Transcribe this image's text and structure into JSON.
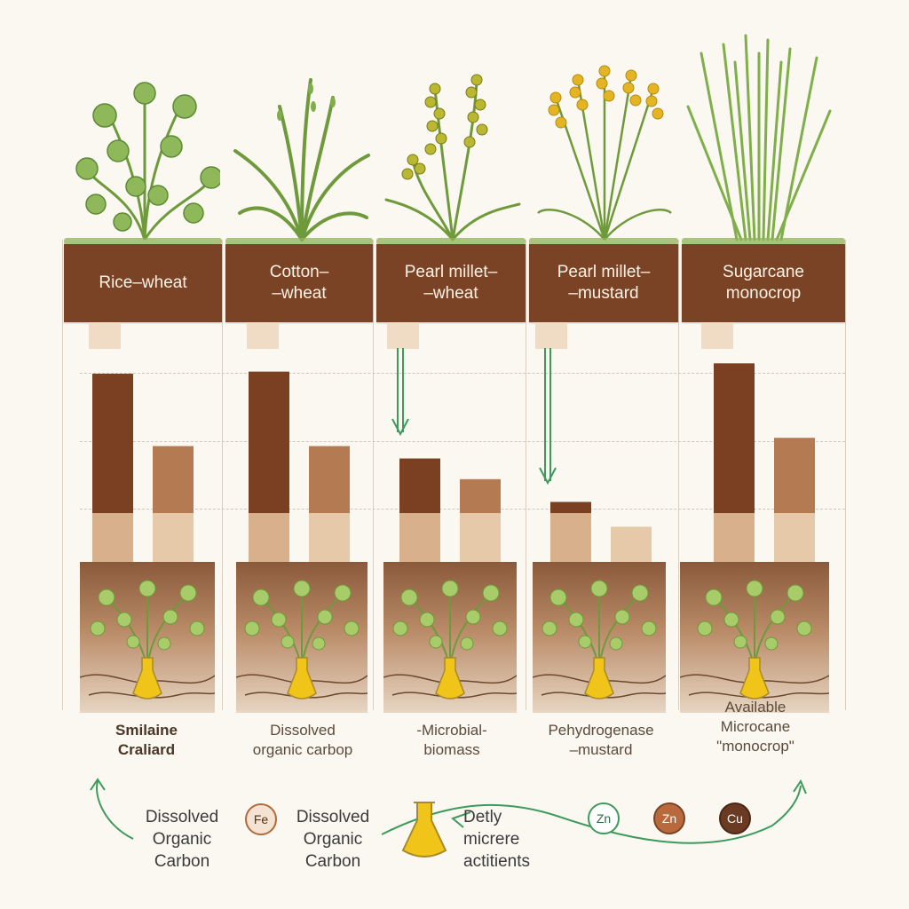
{
  "columns": [
    {
      "id": "c1",
      "header": "Rice–wheat",
      "soil_label": "Smilaine\nCraliard",
      "soil_label_style": "bold"
    },
    {
      "id": "c2",
      "header": "Cotton–\n–wheat",
      "soil_label": "Dissolved\norganic carbop",
      "soil_label_style": "normal"
    },
    {
      "id": "c3",
      "header": "Pearl millet–\n–wheat",
      "soil_label": "-Microbial-\nbiomass",
      "soil_label_style": "normal"
    },
    {
      "id": "c4",
      "header": "Pearl millet–\n–mustard",
      "soil_label": "Pehydrogenase\n–mustard",
      "soil_label_style": "normal"
    },
    {
      "id": "c5",
      "header": "Sugarcane\nmonocrop",
      "soil_label": "Available\nMicrocane\n\"monocrop\"",
      "soil_label_style": "normal"
    }
  ],
  "chart_data": {
    "type": "bar",
    "categories": [
      "Rice–wheat",
      "Cotton–\n–wheat",
      "Pearl millet–\n–wheat",
      "Pearl millet–\n–mustard",
      "Sugarcane\nmonocrop"
    ],
    "series": [
      {
        "values": [
          9.1,
          9.2,
          5.0,
          2.9,
          9.6
        ]
      },
      {
        "values": [
          5.6,
          5.6,
          4.0,
          1.7,
          6.0
        ]
      }
    ],
    "ylim": [
      0,
      10
    ],
    "xlabel": "",
    "ylabel": "",
    "grid": true
  },
  "bottom": {
    "left_text": "Dissolved\nOrganic\nCarbon",
    "fe_label": "Fe",
    "middle_text": "Dissolved\nOrganic\nCarbon",
    "right_text": "Detly\nmicrere\nactitients",
    "ions": [
      {
        "label": "Zn",
        "style": "outline-green"
      },
      {
        "label": "Zn",
        "style": "filled-brown"
      },
      {
        "label": "Cu",
        "style": "filled-dark"
      }
    ]
  },
  "colors": {
    "header_bg": "#7a4326",
    "bar_dark": "#7b3f22",
    "bar_mid": "#b47a52",
    "bar_light": "#d9b08c",
    "bar_pale": "#e6c9a8",
    "arrow_green": "#3d9a5c",
    "leaf_green": "#7fae4a",
    "flower_yellow": "#e4b523",
    "flask_yellow": "#f0c419"
  },
  "icons": [
    "plant-icon",
    "arrow-down-icon",
    "flask-icon",
    "cycle-arrow-icon"
  ]
}
